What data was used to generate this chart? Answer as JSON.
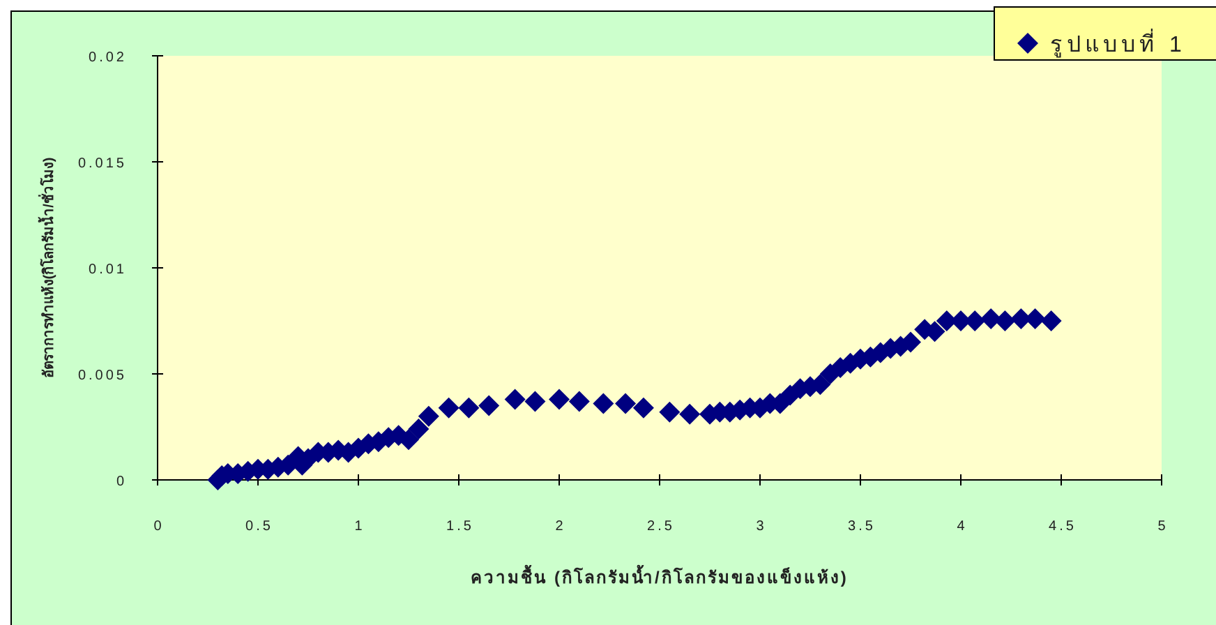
{
  "chart_data": {
    "type": "scatter",
    "xlabel": "ความชื้น (กิโลกรัมน้ำ/กิโลกรัมของแข็งแห้ง)",
    "ylabel": "อัตราการทำแห้ง(กิโลกรัมน้ำ/ชั่วโมง)",
    "xlim": [
      0,
      5
    ],
    "ylim": [
      0,
      0.02
    ],
    "xticks": [
      0,
      0.5,
      1,
      1.5,
      2,
      2.5,
      3,
      3.5,
      4,
      4.5,
      5
    ],
    "yticks": [
      0,
      0.005,
      0.01,
      0.015,
      0.02
    ],
    "marker": "diamond",
    "legend": "top right",
    "series": [
      {
        "name": "รูปแบบที่ 1",
        "color": "#000080",
        "x": [
          0.3,
          0.32,
          0.35,
          0.4,
          0.45,
          0.5,
          0.55,
          0.6,
          0.65,
          0.7,
          0.72,
          0.75,
          0.8,
          0.85,
          0.9,
          0.95,
          1.0,
          1.05,
          1.1,
          1.15,
          1.2,
          1.25,
          1.3,
          1.35,
          1.45,
          1.55,
          1.65,
          1.78,
          1.88,
          2.0,
          2.1,
          2.22,
          2.33,
          2.42,
          2.55,
          2.65,
          2.75,
          2.8,
          2.85,
          2.9,
          2.95,
          3.0,
          3.05,
          3.1,
          3.15,
          3.2,
          3.25,
          3.3,
          3.35,
          3.4,
          3.45,
          3.5,
          3.55,
          3.6,
          3.65,
          3.7,
          3.75,
          3.82,
          3.87,
          3.93,
          4.0,
          4.07,
          4.15,
          4.22,
          4.3,
          4.37,
          4.45
        ],
        "values": [
          0,
          0.0002,
          0.0003,
          0.0003,
          0.0004,
          0.0005,
          0.0005,
          0.0006,
          0.0007,
          0.0011,
          0.0007,
          0.001,
          0.0013,
          0.0013,
          0.0014,
          0.0013,
          0.0015,
          0.0017,
          0.0018,
          0.002,
          0.0021,
          0.0019,
          0.0024,
          0.003,
          0.0034,
          0.0034,
          0.0035,
          0.0038,
          0.0037,
          0.0038,
          0.0037,
          0.0036,
          0.0036,
          0.0034,
          0.0032,
          0.0031,
          0.0031,
          0.0032,
          0.0032,
          0.0033,
          0.0034,
          0.0034,
          0.0036,
          0.0036,
          0.004,
          0.0043,
          0.0044,
          0.0045,
          0.005,
          0.0053,
          0.0055,
          0.0057,
          0.0058,
          0.006,
          0.0062,
          0.0063,
          0.0065,
          0.0071,
          0.007,
          0.0075,
          0.0075,
          0.0075,
          0.0076,
          0.0075,
          0.0076,
          0.0076,
          0.0075
        ]
      }
    ]
  }
}
